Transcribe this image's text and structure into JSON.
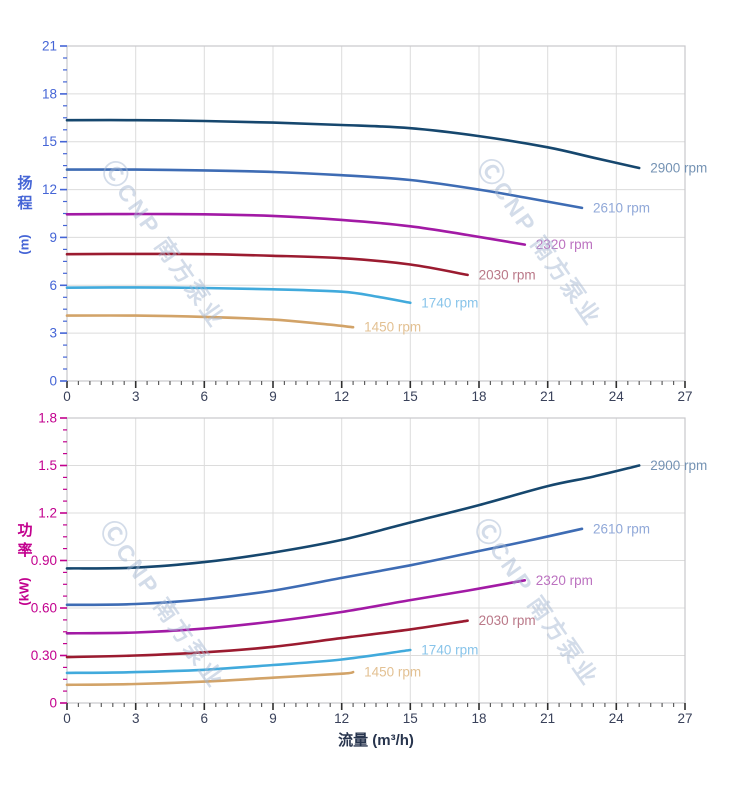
{
  "watermark": {
    "logo": "Ⓒ",
    "text": "CNP 南方泵业",
    "color": "rgba(163,181,208,0.48)"
  },
  "colors": {
    "grid": "#dcdcdc",
    "border": "#c8c8cc",
    "x_tick_major": "#2e2e2e",
    "x_tick_minor": "#5f5f5f",
    "x_tick_label": "#39415a",
    "x_title": "#28354e",
    "head_axis": "#4565d6",
    "power_axis": "#c2008e"
  },
  "x_axis": {
    "title": "流量 (m³/h)"
  },
  "chart_data": [
    {
      "type": "line",
      "title": "",
      "xlabel": "流量 (m³/h)",
      "ylabel": "扬程 (m)",
      "ylabel_cjk": "扬程",
      "ylabel_unit": "(m)",
      "xlim": [
        0,
        27
      ],
      "ylim": [
        0,
        21
      ],
      "x_major_step": 3,
      "x_minor_step": 0.5,
      "y_major_step": 3,
      "y_minor_step": 0.75,
      "grid": true,
      "legend_position": "end-of-line",
      "x_ticks": [
        "0",
        "3",
        "6",
        "9",
        "12",
        "15",
        "18",
        "21",
        "24",
        "27"
      ],
      "y_ticks": [
        {
          "v": 0,
          "label": "0"
        },
        {
          "v": 3,
          "label": "3"
        },
        {
          "v": 6,
          "label": "6"
        },
        {
          "v": 9,
          "label": "9"
        },
        {
          "v": 12,
          "label": "12"
        },
        {
          "v": 15,
          "label": "15"
        },
        {
          "v": 18,
          "label": "18"
        },
        {
          "v": 21,
          "label": "21"
        }
      ],
      "series": [
        {
          "name": "2900 rpm",
          "color": "#16476e",
          "label_color": "#7593b4",
          "points": [
            [
              0,
              16.35
            ],
            [
              3,
              16.35
            ],
            [
              6,
              16.3
            ],
            [
              9,
              16.2
            ],
            [
              12,
              16.05
            ],
            [
              15,
              15.85
            ],
            [
              18,
              15.35
            ],
            [
              21,
              14.65
            ],
            [
              23,
              14.0
            ],
            [
              25,
              13.35
            ]
          ]
        },
        {
          "name": "2610 rpm",
          "color": "#3e6cb4",
          "label_color": "#90a8d8",
          "points": [
            [
              0,
              13.25
            ],
            [
              3,
              13.25
            ],
            [
              6,
              13.2
            ],
            [
              9,
              13.1
            ],
            [
              12,
              12.9
            ],
            [
              15,
              12.6
            ],
            [
              18,
              12.0
            ],
            [
              20,
              11.5
            ],
            [
              22.5,
              10.85
            ]
          ]
        },
        {
          "name": "2320 rpm",
          "color": "#a21aa5",
          "label_color": "#bc72c0",
          "points": [
            [
              0,
              10.45
            ],
            [
              3,
              10.47
            ],
            [
              6,
              10.45
            ],
            [
              9,
              10.35
            ],
            [
              12,
              10.1
            ],
            [
              15,
              9.7
            ],
            [
              17.5,
              9.15
            ],
            [
              20,
              8.55
            ]
          ]
        },
        {
          "name": "2030 rpm",
          "color": "#9b1b30",
          "label_color": "#ba7888",
          "points": [
            [
              0,
              7.95
            ],
            [
              3,
              7.97
            ],
            [
              6,
              7.95
            ],
            [
              9,
              7.85
            ],
            [
              12,
              7.7
            ],
            [
              15,
              7.3
            ],
            [
              17.5,
              6.65
            ]
          ]
        },
        {
          "name": "1740 rpm",
          "color": "#41aadc",
          "label_color": "#88c4ea",
          "points": [
            [
              0,
              5.85
            ],
            [
              3,
              5.87
            ],
            [
              6,
              5.83
            ],
            [
              9,
              5.75
            ],
            [
              12,
              5.6
            ],
            [
              13.5,
              5.3
            ],
            [
              15,
              4.9
            ]
          ]
        },
        {
          "name": "1450 rpm",
          "color": "#d2a368",
          "label_color": "#e3c193",
          "points": [
            [
              0,
              4.1
            ],
            [
              3,
              4.1
            ],
            [
              6,
              4.02
            ],
            [
              9,
              3.85
            ],
            [
              11,
              3.6
            ],
            [
              12.5,
              3.37
            ]
          ]
        }
      ]
    },
    {
      "type": "line",
      "title": "",
      "xlabel": "流量 (m³/h)",
      "ylabel": "功率 (kW)",
      "ylabel_cjk": "功率",
      "ylabel_unit": "(kW)",
      "xlim": [
        0,
        27
      ],
      "ylim": [
        0,
        1.8
      ],
      "x_major_step": 3,
      "x_minor_step": 0.5,
      "y_major_step": 0.3,
      "y_minor_step": 0.075,
      "grid": true,
      "legend_position": "end-of-line",
      "x_ticks": [
        "0",
        "3",
        "6",
        "9",
        "12",
        "15",
        "18",
        "21",
        "24",
        "27"
      ],
      "y_ticks": [
        {
          "v": 0,
          "label": "0"
        },
        {
          "v": 0.3,
          "label": "0.30"
        },
        {
          "v": 0.6,
          "label": "0.60"
        },
        {
          "v": 0.9,
          "label": "0.90"
        },
        {
          "v": 1.2,
          "label": "1.2"
        },
        {
          "v": 1.5,
          "label": "1.5"
        },
        {
          "v": 1.8,
          "label": "1.8"
        }
      ],
      "series": [
        {
          "name": "2900 rpm",
          "color": "#16476e",
          "label_color": "#7593b4",
          "points": [
            [
              0,
              0.85
            ],
            [
              3,
              0.855
            ],
            [
              6,
              0.89
            ],
            [
              9,
              0.95
            ],
            [
              12,
              1.03
            ],
            [
              15,
              1.14
            ],
            [
              18,
              1.25
            ],
            [
              21,
              1.37
            ],
            [
              23,
              1.43
            ],
            [
              25,
              1.5
            ]
          ]
        },
        {
          "name": "2610 rpm",
          "color": "#3e6cb4",
          "label_color": "#90a8d8",
          "points": [
            [
              0,
              0.62
            ],
            [
              3,
              0.625
            ],
            [
              6,
              0.655
            ],
            [
              9,
              0.71
            ],
            [
              12,
              0.79
            ],
            [
              15,
              0.87
            ],
            [
              18,
              0.96
            ],
            [
              20,
              1.02
            ],
            [
              22.5,
              1.1
            ]
          ]
        },
        {
          "name": "2320 rpm",
          "color": "#a21aa5",
          "label_color": "#bc72c0",
          "points": [
            [
              0,
              0.44
            ],
            [
              3,
              0.445
            ],
            [
              6,
              0.47
            ],
            [
              9,
              0.515
            ],
            [
              12,
              0.575
            ],
            [
              15,
              0.65
            ],
            [
              17.5,
              0.71
            ],
            [
              20,
              0.775
            ]
          ]
        },
        {
          "name": "2030 rpm",
          "color": "#9b1b30",
          "label_color": "#ba7888",
          "points": [
            [
              0,
              0.29
            ],
            [
              3,
              0.3
            ],
            [
              6,
              0.32
            ],
            [
              9,
              0.355
            ],
            [
              12,
              0.41
            ],
            [
              15,
              0.465
            ],
            [
              17.5,
              0.52
            ]
          ]
        },
        {
          "name": "1740 rpm",
          "color": "#41aadc",
          "label_color": "#88c4ea",
          "points": [
            [
              0,
              0.19
            ],
            [
              3,
              0.195
            ],
            [
              6,
              0.21
            ],
            [
              9,
              0.24
            ],
            [
              12,
              0.275
            ],
            [
              15,
              0.335
            ]
          ]
        },
        {
          "name": "1450 rpm",
          "color": "#d2a368",
          "label_color": "#e3c193",
          "points": [
            [
              0,
              0.115
            ],
            [
              3,
              0.12
            ],
            [
              6,
              0.135
            ],
            [
              9,
              0.16
            ],
            [
              12,
              0.185
            ],
            [
              12.5,
              0.195
            ]
          ]
        }
      ]
    }
  ]
}
